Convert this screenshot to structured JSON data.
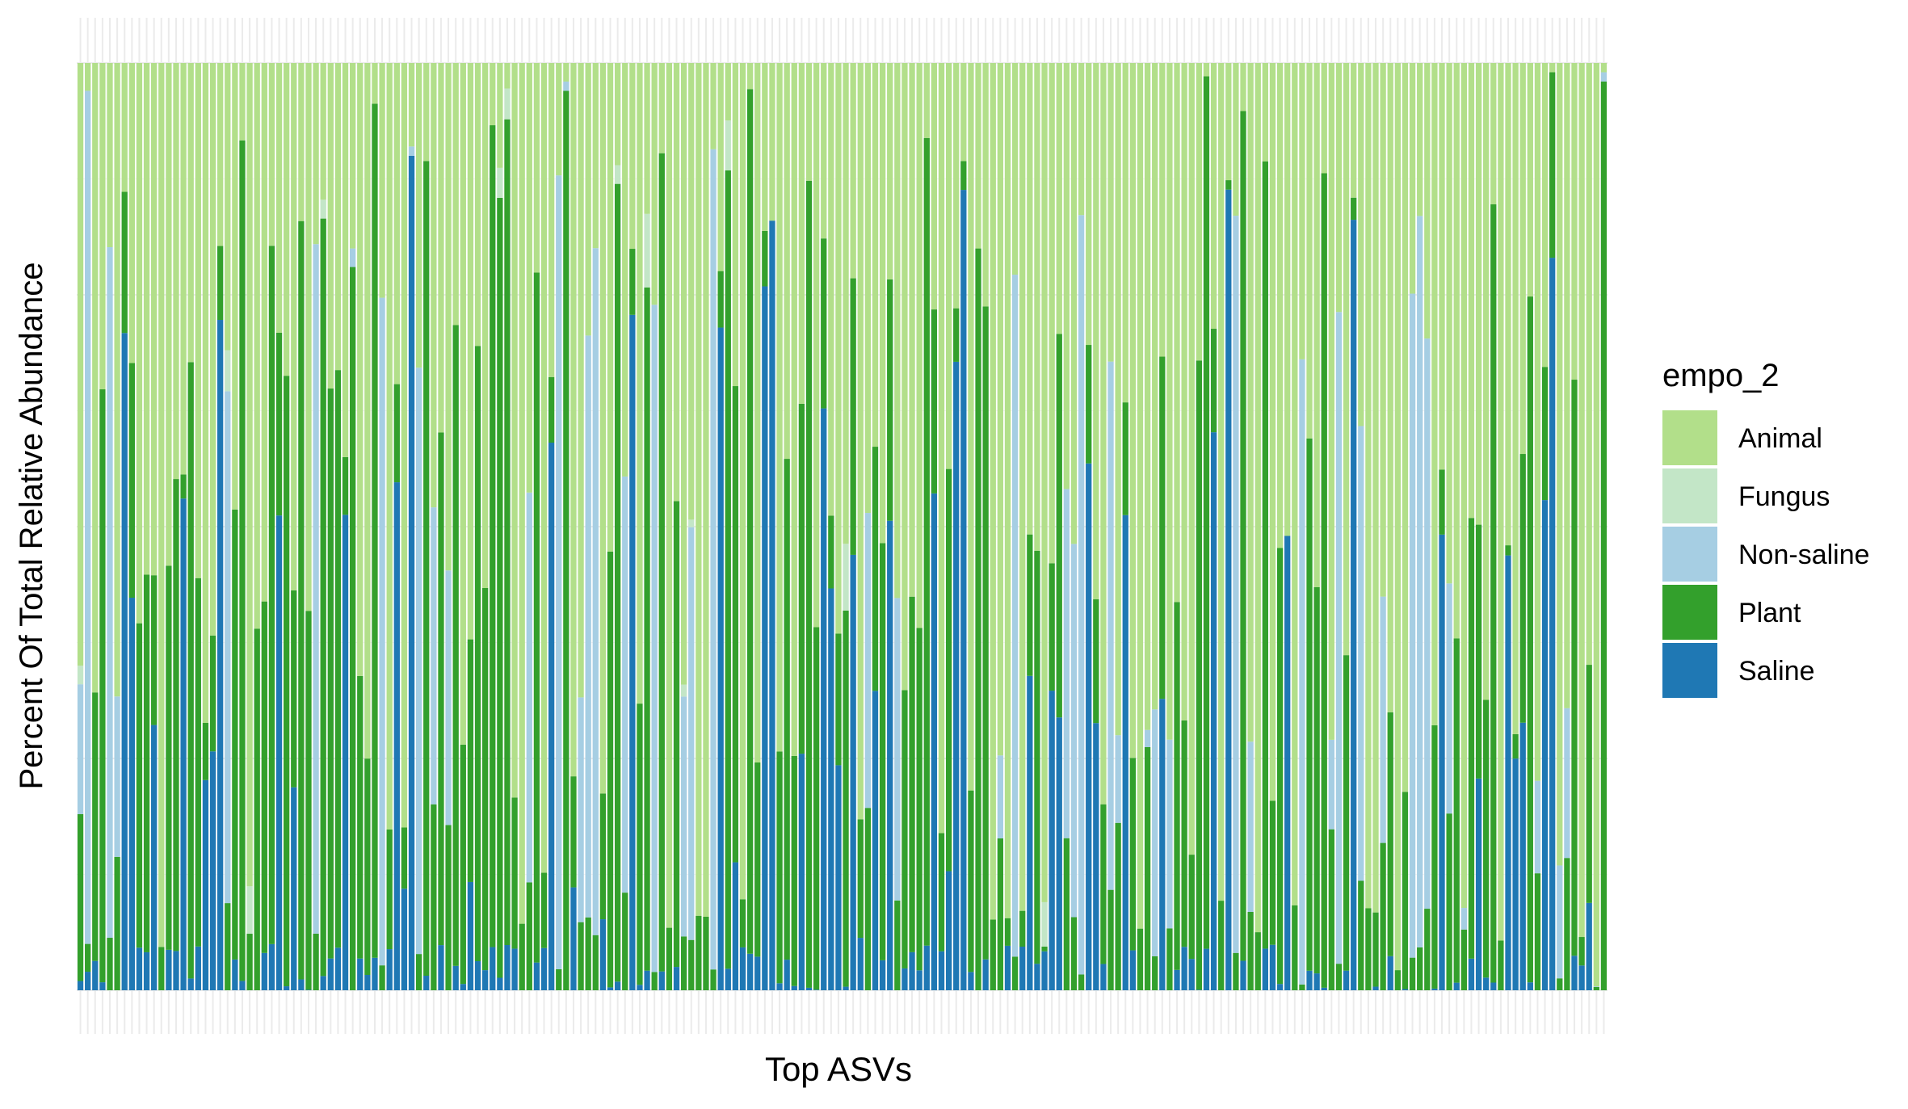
{
  "chart_data": {
    "type": "bar",
    "stacked": true,
    "normalized": true,
    "xlabel": "Top ASVs",
    "ylabel": "Percent Of Total Relative Abundance",
    "ylim": [
      0,
      1
    ],
    "x_tick_labels_visible": false,
    "grid": true,
    "legend": {
      "position": "right",
      "title": "empo_2",
      "entries": [
        "Animal",
        "Fungus",
        "Non-saline",
        "Plant",
        "Saline"
      ]
    },
    "colors": {
      "Animal": "#b2df8a",
      "Fungus": "#c3e6c7",
      "Non-saline": "#a6cee3",
      "Plant": "#33a02c",
      "Saline": "#1f78b4"
    },
    "bar_count": 208,
    "sample_bars": [
      {
        "index": 1,
        "Saline": 0.01,
        "Plant": 0.18,
        "Non-saline": 0.14,
        "Fungus": 0.02,
        "Animal": 0.65
      },
      {
        "index": 2,
        "Saline": 0.02,
        "Plant": 0.03,
        "Non-saline": 0.92,
        "Fungus": 0.0,
        "Animal": 0.03
      },
      {
        "index": 25,
        "Saline": 0.0,
        "Plant": 0.39,
        "Non-saline": 0.0,
        "Fungus": 0.0,
        "Animal": 0.61
      },
      {
        "index": 38,
        "Saline": 0.0,
        "Plant": 0.78,
        "Non-saline": 0.02,
        "Fungus": 0.0,
        "Animal": 0.2
      },
      {
        "index": 46,
        "Saline": 0.9,
        "Plant": 0.0,
        "Non-saline": 0.01,
        "Fungus": 0.0,
        "Animal": 0.09
      },
      {
        "index": 67,
        "Saline": 0.0,
        "Plant": 0.97,
        "Non-saline": 0.01,
        "Fungus": 0.0,
        "Animal": 0.02
      },
      {
        "index": 95,
        "Saline": 0.83,
        "Plant": 0.0,
        "Non-saline": 0.0,
        "Fungus": 0.0,
        "Animal": 0.17
      },
      {
        "index": 123,
        "Saline": 0.0,
        "Plant": 0.8,
        "Non-saline": 0.0,
        "Fungus": 0.0,
        "Animal": 0.2
      },
      {
        "index": 165,
        "Saline": 0.49,
        "Plant": 0.0,
        "Non-saline": 0.0,
        "Fungus": 0.0,
        "Animal": 0.51
      },
      {
        "index": 201,
        "Saline": 0.79,
        "Plant": 0.2,
        "Non-saline": 0.0,
        "Fungus": 0.0,
        "Animal": 0.01
      },
      {
        "index": 208,
        "Saline": 0.0,
        "Plant": 0.98,
        "Non-saline": 0.01,
        "Fungus": 0.0,
        "Animal": 0.01
      }
    ]
  }
}
